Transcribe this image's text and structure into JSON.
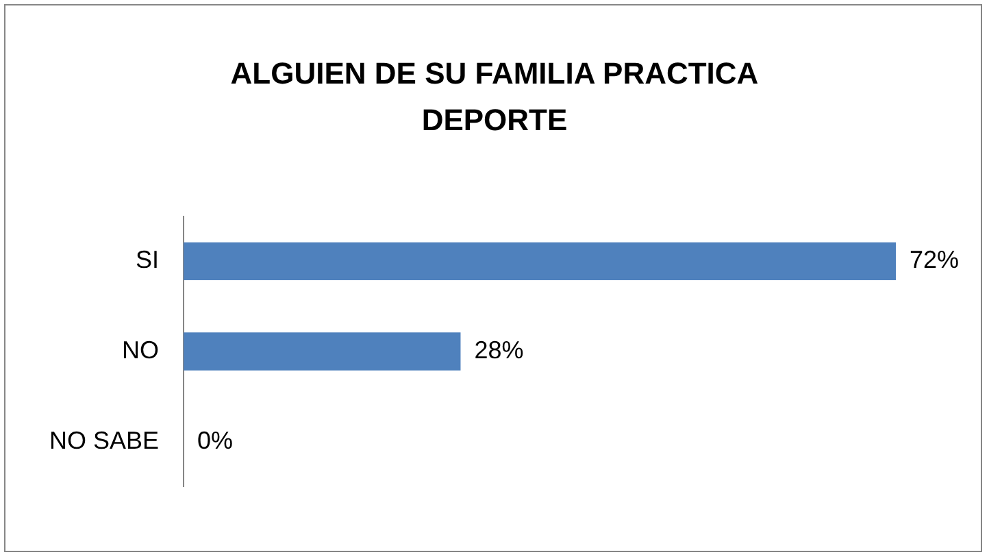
{
  "chart_data": {
    "type": "bar",
    "orientation": "horizontal",
    "title": "ALGUIEN DE SU FAMILIA PRACTICA DEPORTE",
    "categories": [
      "SI",
      "NO",
      "NO SABE"
    ],
    "values": [
      72,
      28,
      0
    ],
    "color": "#4f81bd",
    "value_labels": [
      "72%",
      "28%",
      "0%"
    ],
    "legend": false
  }
}
